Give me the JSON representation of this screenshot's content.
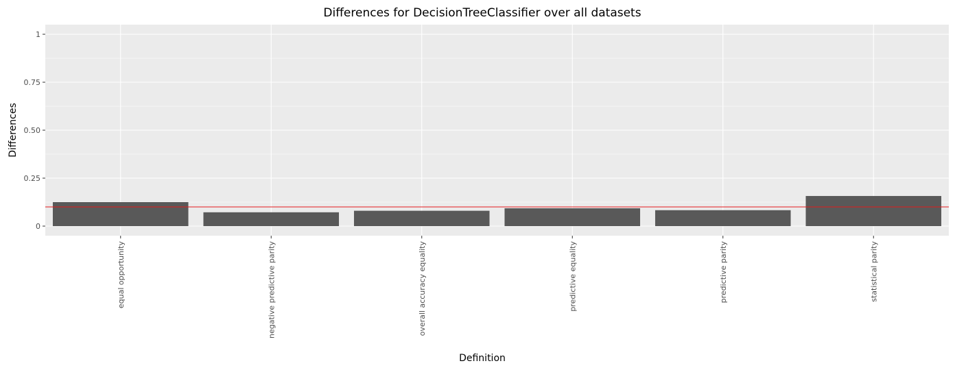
{
  "chart_data": {
    "type": "bar",
    "title": "Differences for DecisionTreeClassifier over all datasets",
    "xlabel": "Definition",
    "ylabel": "Differences",
    "categories": [
      "equal opportunity",
      "negative predictive parity",
      "overall accuracy equality",
      "predictive equality",
      "predictive parity",
      "statistical parity"
    ],
    "values": [
      0.125,
      0.072,
      0.08,
      0.093,
      0.083,
      0.157
    ],
    "ylim": [
      -0.05,
      1.05
    ],
    "yticks": [
      0,
      0.25,
      0.5,
      0.75,
      1
    ],
    "ytick_labels": [
      "0",
      "0.25",
      "0.50",
      "0.75",
      "1"
    ],
    "reference_line": 0.1,
    "reference_line_color": "#e41a1c",
    "bar_color": "#595959",
    "panel_background": "#ebebeb",
    "grid": true
  }
}
